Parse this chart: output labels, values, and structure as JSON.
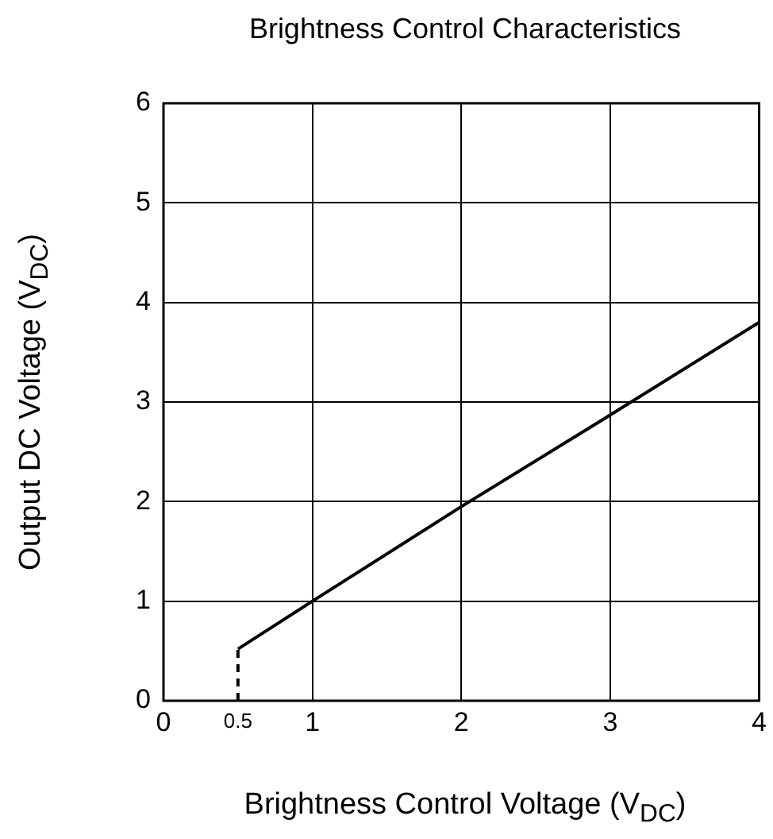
{
  "chart_data": {
    "type": "line",
    "title": "Brightness Control Characteristics",
    "xlabel": "Brightness Control Voltage (V$_{DC}$)",
    "ylabel": "Output DC Voltage (V$_{DC}$)",
    "xlim": [
      0,
      4
    ],
    "xticks": [
      0,
      1,
      2,
      3,
      4
    ],
    "ylim": [
      0,
      6
    ],
    "yticks": [
      0,
      1,
      2,
      3,
      4,
      5,
      6
    ],
    "grid": true,
    "marker": "none",
    "series": [
      {
        "color": "#000000",
        "x": [
          0.5,
          1,
          2,
          3,
          4
        ],
        "values": [
          0.52,
          1,
          1.95,
          2.87,
          3.8
        ],
        "line_style": "solid"
      },
      {
        "color": "#000000",
        "x": [
          0.5,
          0.5
        ],
        "values": [
          0,
          0.52
        ],
        "line_style": "dashed"
      }
    ],
    "annotations": [
      {
        "text": "0.5",
        "x": 0.5,
        "y": 0
      }
    ]
  }
}
